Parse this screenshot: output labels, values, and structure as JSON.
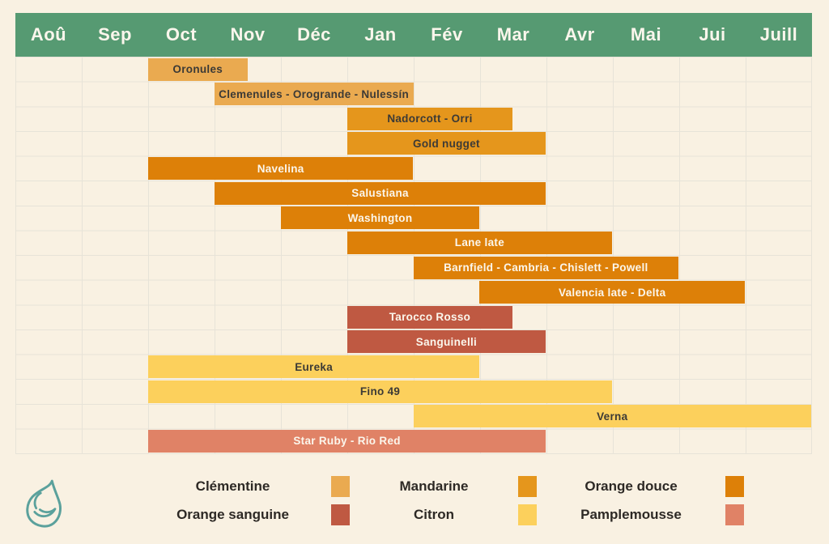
{
  "header": {
    "months": [
      "Aoû",
      "Sep",
      "Oct",
      "Nov",
      "Déc",
      "Jan",
      "Fév",
      "Mar",
      "Avr",
      "Mai",
      "Jui",
      "Juill"
    ]
  },
  "colors": {
    "background": "#f9f1e2",
    "header_bg": "#569a72",
    "grid_line": "#e7e3d8",
    "clementine": "#eaaa50",
    "mandarine": "#e5961c",
    "orange_douce": "#dd8008",
    "orange_sanguine": "#bf5942",
    "citron": "#fcd05c",
    "pamplemousse": "#e08266",
    "bar_text_dark": "#3c3a36",
    "bar_text_light": "#fbf6ec",
    "legend_text": "#2d2925",
    "logo": "#5ba19c"
  },
  "chart_data": {
    "type": "gantt",
    "title": "",
    "x_axis": {
      "categories": [
        "Aoû",
        "Sep",
        "Oct",
        "Nov",
        "Déc",
        "Jan",
        "Fév",
        "Mar",
        "Avr",
        "Mai",
        "Jui",
        "Juill"
      ],
      "range_months": [
        0,
        12
      ],
      "grid": true
    },
    "bars": [
      {
        "label": "Oronules",
        "category": "clementine",
        "start_month": "Oct",
        "end_month": "mi-Nov",
        "start": 2,
        "end": 3.5,
        "text": "dark"
      },
      {
        "label": "Clemenules - Orogrande - Nulessín",
        "category": "clementine",
        "start_month": "Nov",
        "end_month": "Jan",
        "start": 3,
        "end": 6,
        "text": "dark"
      },
      {
        "label": "Nadorcott - Orri",
        "category": "mandarine",
        "start_month": "Jan",
        "end_month": "mi-Mar",
        "start": 5,
        "end": 7.5,
        "text": "dark"
      },
      {
        "label": "Gold nugget",
        "category": "mandarine",
        "start_month": "Jan",
        "end_month": "Mar",
        "start": 5,
        "end": 8,
        "text": "dark"
      },
      {
        "label": "Navelina",
        "category": "orange_douce",
        "start_month": "Oct",
        "end_month": "Jan",
        "start": 2,
        "end": 6,
        "text": "light"
      },
      {
        "label": "Salustiana",
        "category": "orange_douce",
        "start_month": "Nov",
        "end_month": "Mar",
        "start": 3,
        "end": 8,
        "text": "light"
      },
      {
        "label": "Washington",
        "category": "orange_douce",
        "start_month": "Déc",
        "end_month": "Fév",
        "start": 4,
        "end": 7,
        "text": "light"
      },
      {
        "label": "Lane late",
        "category": "orange_douce",
        "start_month": "Jan",
        "end_month": "Avr",
        "start": 5,
        "end": 9,
        "text": "light"
      },
      {
        "label": "Barnfield - Cambria - Chislett - Powell",
        "category": "orange_douce",
        "start_month": "Fév",
        "end_month": "Mai",
        "start": 6,
        "end": 10,
        "text": "light"
      },
      {
        "label": "Valencia late  - Delta",
        "category": "orange_douce",
        "start_month": "Mar",
        "end_month": "Jui",
        "start": 7,
        "end": 11,
        "text": "light"
      },
      {
        "label": "Tarocco Rosso",
        "category": "orange_sanguine",
        "start_month": "Jan",
        "end_month": "mi-Mar",
        "start": 5,
        "end": 7.5,
        "text": "light"
      },
      {
        "label": "Sanguinelli",
        "category": "orange_sanguine",
        "start_month": "Jan",
        "end_month": "Mar",
        "start": 5,
        "end": 8,
        "text": "light"
      },
      {
        "label": "Eureka",
        "category": "citron",
        "start_month": "Oct",
        "end_month": "Fév",
        "start": 2,
        "end": 7,
        "text": "dark"
      },
      {
        "label": "Fino 49",
        "category": "citron",
        "start_month": "Oct",
        "end_month": "Avr",
        "start": 2,
        "end": 9,
        "text": "dark"
      },
      {
        "label": "Verna",
        "category": "citron",
        "start_month": "Fév",
        "end_month": "Juill",
        "start": 6,
        "end": 12,
        "text": "dark"
      },
      {
        "label": "Star Ruby - Rio Red",
        "category": "pamplemousse",
        "start_month": "Oct",
        "end_month": "Mar",
        "start": 2,
        "end": 8,
        "text": "light"
      }
    ]
  },
  "legend": {
    "items": [
      {
        "label": "Clémentine",
        "color_key": "clementine"
      },
      {
        "label": "Mandarine",
        "color_key": "mandarine"
      },
      {
        "label": "Orange douce",
        "color_key": "orange_douce"
      },
      {
        "label": "Orange sanguine",
        "color_key": "orange_sanguine"
      },
      {
        "label": "Citron",
        "color_key": "citron"
      },
      {
        "label": "Pamplemousse",
        "color_key": "pamplemousse"
      }
    ]
  },
  "logo": {
    "name": "citrus-leaf-logo"
  }
}
